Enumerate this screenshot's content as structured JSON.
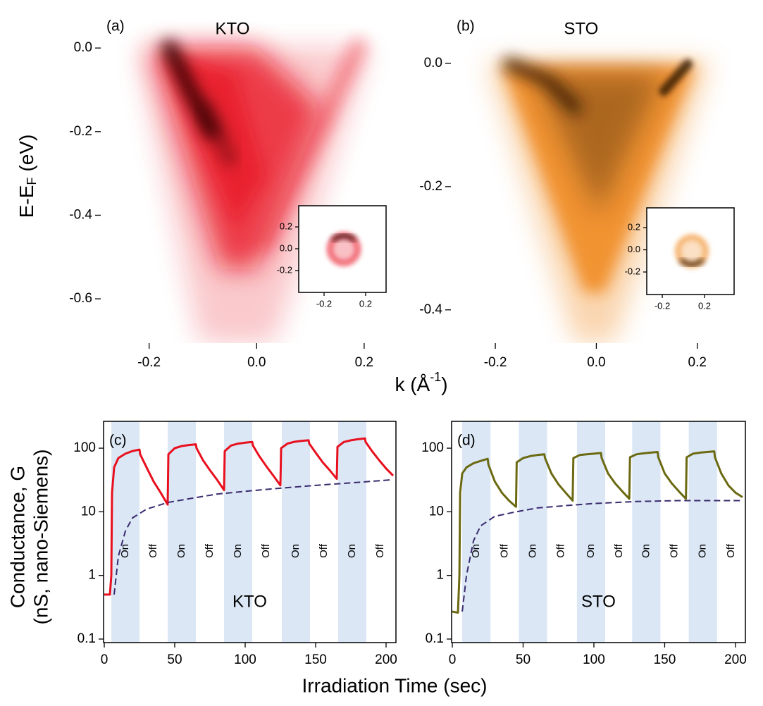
{
  "figure": {
    "ylabel_top": [
      "E-E",
      "F",
      "(eV)"
    ],
    "xlabel_top": [
      "k (Å",
      "-1",
      ")"
    ],
    "ylabel_bottom": [
      "Conductance, G",
      "(nS, nano-Siemens)"
    ],
    "xlabel_bottom": "Irradiation Time (sec)"
  },
  "chart_data": [
    {
      "type": "image",
      "panel_label": "(a)",
      "title": "KTO",
      "color": "#e8101e",
      "dark": "#2a0000",
      "xlim": [
        -0.29,
        0.267
      ],
      "ylim": [
        -0.706,
        0.098
      ],
      "xticks": [
        -0.2,
        {
          "value": 0,
          "label": "0.0"
        },
        0.2
      ],
      "yticks": [
        {
          "value": 0,
          "label": "0.0"
        },
        -0.2,
        -0.4,
        -0.6
      ],
      "inset": {
        "xlim": [
          -0.444,
          0.397
        ],
        "ylim": [
          -0.4,
          0.394
        ],
        "xticks": [
          -0.2,
          0.2
        ],
        "yticks": [
          0.2,
          {
            "value": 0,
            "label": "0.0"
          },
          -0.2
        ]
      }
    },
    {
      "type": "image",
      "panel_label": "(b)",
      "title": "STO",
      "color": "#f0881e",
      "dark": "#2e1400",
      "xlim": [
        -0.288,
        0.298
      ],
      "ylim": [
        -0.454,
        0.0914
      ],
      "xticks": [
        -0.2,
        {
          "value": 0,
          "label": "0.0"
        },
        0.2
      ],
      "yticks": [
        {
          "value": 0,
          "label": "0.0"
        },
        -0.2,
        -0.4
      ],
      "inset": {
        "xlim": [
          -0.347,
          0.48
        ],
        "ylim": [
          -0.403,
          0.378
        ],
        "xticks": [
          -0.2,
          0.2
        ],
        "yticks": [
          0.2,
          {
            "value": 0,
            "label": "0.0"
          },
          -0.2
        ]
      }
    },
    {
      "type": "line",
      "panel_label": "(c)",
      "title": "KTO",
      "log_y": true,
      "span_color": "#dbe7f5",
      "xlim": [
        -0.5,
        207
      ],
      "ylim": [
        0.088,
        264
      ],
      "xticks": [
        0,
        50,
        100,
        150,
        200
      ],
      "yticks": [
        0.1,
        1,
        10,
        100
      ],
      "spans": [
        [
          5,
          25
        ],
        [
          45,
          65
        ],
        [
          85,
          105
        ],
        [
          126,
          146
        ],
        [
          166,
          186
        ]
      ],
      "span_labels": [
        "On",
        "Off",
        "On",
        "Off",
        "On",
        "Off",
        "On",
        "Off",
        "On",
        "Off"
      ],
      "series": [
        {
          "color": "#e8101e",
          "dashed": false,
          "x": [
            0,
            4,
            5,
            5.5,
            7,
            10,
            15,
            20,
            25,
            25.5,
            30,
            35,
            40,
            45,
            45.5,
            50,
            55,
            60,
            65,
            65.5,
            70,
            75,
            80,
            85,
            85.5,
            90,
            95,
            100,
            105,
            105.5,
            110,
            115,
            120,
            125,
            125.5,
            130,
            135,
            140,
            145,
            145.5,
            150,
            155,
            160,
            165,
            165.5,
            170,
            175,
            180,
            185,
            185.5,
            190,
            195,
            200,
            205
          ],
          "values": [
            0.5,
            0.5,
            1,
            20,
            50,
            70,
            82,
            90,
            95,
            80,
            50,
            30,
            20,
            13,
            80,
            100,
            108,
            112,
            115,
            100,
            65,
            45,
            32,
            22,
            90,
            110,
            118,
            122,
            125,
            110,
            75,
            52,
            37,
            26,
            100,
            118,
            126,
            130,
            133,
            118,
            85,
            60,
            45,
            33,
            105,
            125,
            133,
            138,
            142,
            125,
            90,
            65,
            48,
            37
          ]
        },
        {
          "color": "#3a2a6e",
          "dashed": true,
          "x": [
            7,
            10,
            15,
            20,
            30,
            45,
            60,
            80,
            100,
            120,
            140,
            160,
            180,
            205
          ],
          "values": [
            0.5,
            2,
            5,
            8,
            11,
            14,
            16,
            19,
            21,
            23,
            25,
            27,
            29,
            32
          ]
        }
      ]
    },
    {
      "type": "line",
      "panel_label": "(d)",
      "title": "STO",
      "log_y": true,
      "span_color": "#dbe7f5",
      "xlim": [
        -0.5,
        207
      ],
      "ylim": [
        0.088,
        264
      ],
      "xticks": [
        0,
        50,
        100,
        150,
        200
      ],
      "yticks": [
        0.1,
        1,
        10,
        100
      ],
      "spans": [
        [
          7,
          27
        ],
        [
          47,
          67
        ],
        [
          88,
          108
        ],
        [
          127,
          147
        ],
        [
          167,
          187
        ]
      ],
      "span_labels": [
        "On",
        "Off",
        "On",
        "Off",
        "On",
        "Off",
        "On",
        "Off",
        "On",
        "Off"
      ],
      "series": [
        {
          "color": "#6b6a12",
          "dashed": false,
          "x": [
            0,
            4,
            5,
            5.5,
            7,
            10,
            15,
            20,
            25,
            25.5,
            30,
            35,
            40,
            45,
            45.5,
            50,
            55,
            60,
            65,
            65.5,
            70,
            75,
            80,
            85,
            85.5,
            90,
            95,
            100,
            105,
            105.5,
            110,
            115,
            120,
            125,
            125.5,
            130,
            135,
            140,
            145,
            145.5,
            150,
            155,
            160,
            165,
            165.5,
            170,
            175,
            180,
            185,
            185.5,
            190,
            195,
            200,
            205
          ],
          "values": [
            0.27,
            0.26,
            1,
            20,
            40,
            50,
            58,
            63,
            68,
            55,
            30,
            20,
            15,
            12,
            60,
            70,
            75,
            78,
            80,
            70,
            40,
            27,
            20,
            15,
            70,
            78,
            80,
            82,
            84,
            70,
            40,
            28,
            21,
            16,
            72,
            80,
            83,
            85,
            87,
            72,
            40,
            28,
            21,
            16,
            72,
            82,
            85,
            87,
            89,
            72,
            40,
            26,
            20,
            17
          ]
        },
        {
          "color": "#3a2a6e",
          "dashed": true,
          "x": [
            7,
            10,
            15,
            20,
            30,
            45,
            60,
            80,
            100,
            130,
            160,
            205
          ],
          "values": [
            0.27,
            1,
            3.5,
            6,
            8.5,
            10,
            11.5,
            12.5,
            13.5,
            14.5,
            15,
            15
          ]
        }
      ]
    }
  ]
}
